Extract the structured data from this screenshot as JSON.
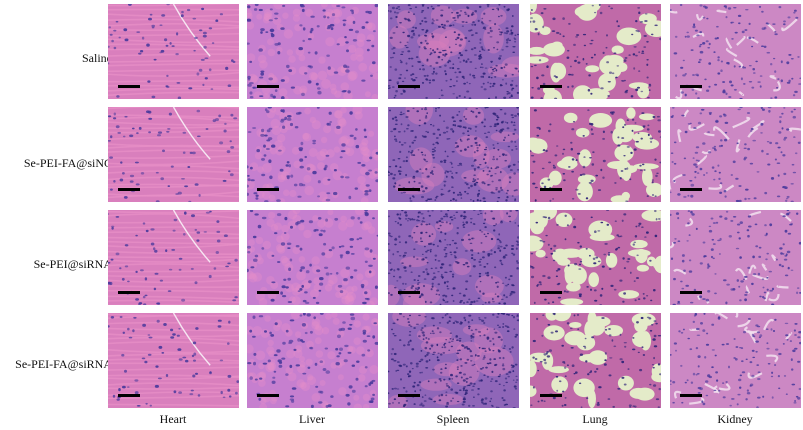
{
  "rows": [
    {
      "label": "Saline"
    },
    {
      "label": "Se-PEI-FA@siNC"
    },
    {
      "label": "Se-PEI@siRNA"
    },
    {
      "label": "Se-PEI-FA@siRNA"
    }
  ],
  "columns": [
    {
      "label": "Heart",
      "tissue": "heart"
    },
    {
      "label": "Liver",
      "tissue": "liver"
    },
    {
      "label": "Spleen",
      "tissue": "spleen"
    },
    {
      "label": "Lung",
      "tissue": "lung"
    },
    {
      "label": "Kidney",
      "tissue": "kidney"
    }
  ],
  "colors": {
    "eosin_light": "#e890c8",
    "eosin": "#d97fbd",
    "eosin_dark": "#c06aa8",
    "hematoxylin": "#4a3a9c",
    "hematoxylin_dark": "#2e2478",
    "spleen_bg": "#8f66b8",
    "lung_space": "#e4ebc9",
    "liver_bg": "#c67fcf",
    "kidney_bg": "#cc88c4",
    "scalebar": "#000000"
  }
}
